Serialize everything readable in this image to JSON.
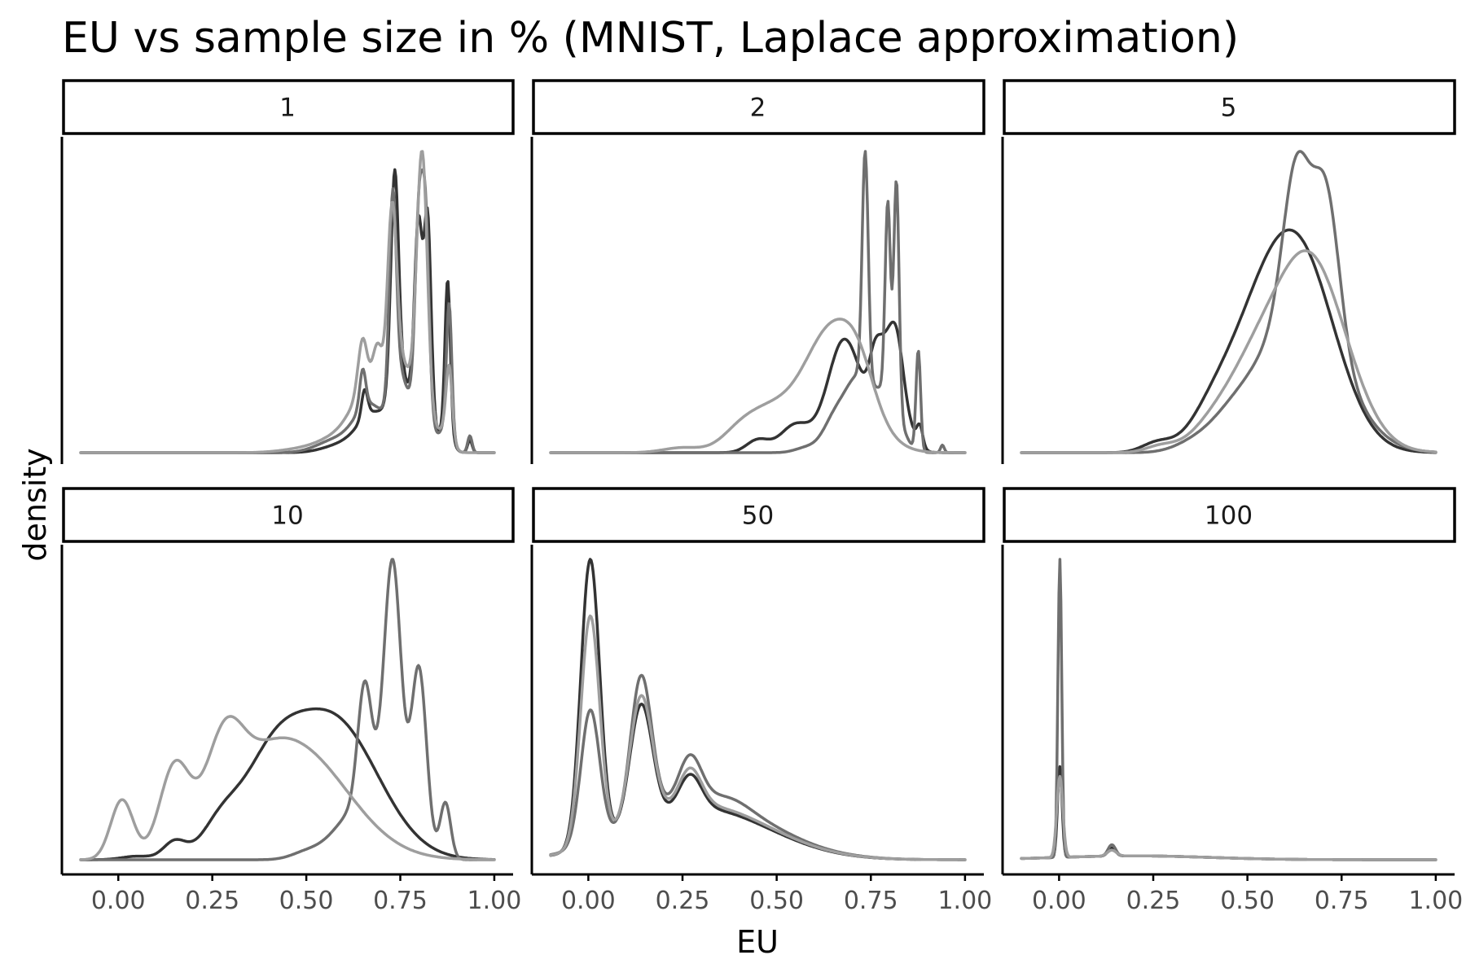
{
  "chart_data": {
    "type": "line",
    "title": "EU vs sample size in %  (MNIST, Laplace approximation)",
    "xlabel": "EU",
    "ylabel": "density",
    "xlim": [
      -0.15,
      1.05
    ],
    "x_ticks": [
      0,
      0.25,
      0.5,
      0.75,
      1
    ],
    "x_tick_labels": [
      "0.00",
      "0.25",
      "0.50",
      "0.75",
      "1.00"
    ],
    "y_ticks_shown": false,
    "grid": false,
    "legend": "none",
    "series_colors": [
      "#333333",
      "#6f6f6f",
      "#9e9e9e"
    ],
    "facets": [
      {
        "label": "1",
        "series": [
          {
            "components": [
              [
                0.735,
                0.01,
                0.95
              ],
              [
                0.745,
                0.022,
                0.35
              ],
              [
                0.798,
                0.01,
                0.75
              ],
              [
                0.823,
                0.009,
                0.85
              ],
              [
                0.805,
                0.024,
                0.35
              ],
              [
                0.876,
                0.007,
                0.7
              ],
              [
                0.872,
                0.015,
                0.12
              ],
              [
                0.935,
                0.006,
                0.06
              ],
              [
                0.655,
                0.008,
                0.13
              ],
              [
                0.68,
                0.04,
                0.18
              ],
              [
                0.6,
                0.05,
                0.04
              ]
            ]
          },
          {
            "components": [
              [
                0.73,
                0.009,
                0.9
              ],
              [
                0.745,
                0.022,
                0.35
              ],
              [
                0.8,
                0.01,
                0.85
              ],
              [
                0.818,
                0.009,
                0.78
              ],
              [
                0.805,
                0.024,
                0.3
              ],
              [
                0.88,
                0.007,
                0.6
              ],
              [
                0.872,
                0.015,
                0.12
              ],
              [
                0.935,
                0.006,
                0.08
              ],
              [
                0.65,
                0.008,
                0.18
              ],
              [
                0.67,
                0.04,
                0.22
              ],
              [
                0.58,
                0.05,
                0.06
              ]
            ]
          },
          {
            "components": [
              [
                0.728,
                0.012,
                0.8
              ],
              [
                0.745,
                0.025,
                0.4
              ],
              [
                0.803,
                0.012,
                0.72
              ],
              [
                0.815,
                0.011,
                0.5
              ],
              [
                0.805,
                0.026,
                0.35
              ],
              [
                0.88,
                0.008,
                0.32
              ],
              [
                0.872,
                0.016,
                0.1
              ],
              [
                0.65,
                0.012,
                0.26
              ],
              [
                0.69,
                0.014,
                0.28
              ],
              [
                0.66,
                0.04,
                0.25
              ],
              [
                0.59,
                0.05,
                0.07
              ],
              [
                0.5,
                0.06,
                0.02
              ]
            ]
          }
        ]
      },
      {
        "label": "2",
        "series": [
          {
            "components": [
              [
                0.45,
                0.03,
                0.05
              ],
              [
                0.55,
                0.04,
                0.11
              ],
              [
                0.68,
                0.045,
                0.45
              ],
              [
                0.8,
                0.035,
                0.45
              ],
              [
                0.88,
                0.008,
                0.08
              ],
              [
                0.76,
                0.015,
                0.12
              ],
              [
                0.82,
                0.015,
                0.1
              ]
            ]
          },
          {
            "components": [
              [
                0.735,
                0.008,
                0.9
              ],
              [
                0.795,
                0.007,
                0.75
              ],
              [
                0.818,
                0.007,
                0.9
              ],
              [
                0.876,
                0.006,
                0.4
              ],
              [
                0.72,
                0.04,
                0.3
              ],
              [
                0.8,
                0.03,
                0.2
              ],
              [
                0.65,
                0.03,
                0.1
              ],
              [
                0.58,
                0.03,
                0.02
              ],
              [
                0.94,
                0.005,
                0.03
              ]
            ]
          },
          {
            "components": [
              [
                0.65,
                0.08,
                0.5
              ],
              [
                0.48,
                0.06,
                0.13
              ],
              [
                0.4,
                0.05,
                0.07
              ],
              [
                0.25,
                0.05,
                0.02
              ],
              [
                0.72,
                0.04,
                0.1
              ]
            ]
          }
        ]
      },
      {
        "label": "5",
        "series": [
          {
            "components": [
              [
                0.63,
                0.1,
                0.64
              ],
              [
                0.5,
                0.08,
                0.18
              ],
              [
                0.4,
                0.06,
                0.08
              ],
              [
                0.26,
                0.04,
                0.03
              ]
            ]
          },
          {
            "components": [
              [
                0.63,
                0.035,
                0.45
              ],
              [
                0.71,
                0.035,
                0.45
              ],
              [
                0.64,
                0.11,
                0.45
              ],
              [
                0.45,
                0.06,
                0.06
              ],
              [
                0.35,
                0.05,
                0.02
              ]
            ]
          },
          {
            "components": [
              [
                0.66,
                0.1,
                0.62
              ],
              [
                0.5,
                0.07,
                0.15
              ],
              [
                0.4,
                0.06,
                0.06
              ],
              [
                0.27,
                0.04,
                0.02
              ]
            ]
          }
        ]
      },
      {
        "label": "10",
        "series": [
          {
            "components": [
              [
                0.57,
                0.12,
                0.4
              ],
              [
                0.4,
                0.08,
                0.2
              ],
              [
                0.27,
                0.05,
                0.08
              ],
              [
                0.15,
                0.03,
                0.05
              ],
              [
                0.05,
                0.04,
                0.01
              ]
            ]
          },
          {
            "components": [
              [
                0.73,
                0.022,
                0.68
              ],
              [
                0.8,
                0.02,
                0.5
              ],
              [
                0.655,
                0.018,
                0.32
              ],
              [
                0.7,
                0.06,
                0.2
              ],
              [
                0.87,
                0.014,
                0.16
              ],
              [
                0.6,
                0.05,
                0.07
              ],
              [
                0.5,
                0.04,
                0.02
              ]
            ]
          },
          {
            "components": [
              [
                0.01,
                0.03,
                0.17
              ],
              [
                0.15,
                0.04,
                0.25
              ],
              [
                0.28,
                0.05,
                0.25
              ],
              [
                0.47,
                0.14,
                0.32
              ],
              [
                0.38,
                0.07,
                0.05
              ]
            ]
          }
        ]
      },
      {
        "label": "50",
        "series": [
          {
            "components": [
              [
                0.005,
                0.025,
                0.9
              ],
              [
                0.14,
                0.03,
                0.38
              ],
              [
                0.27,
                0.03,
                0.11
              ],
              [
                0.3,
                0.18,
                0.16
              ]
            ]
          },
          {
            "components": [
              [
                0.005,
                0.025,
                0.42
              ],
              [
                0.14,
                0.028,
                0.45
              ],
              [
                0.27,
                0.03,
                0.14
              ],
              [
                0.3,
                0.18,
                0.19
              ],
              [
                0.38,
                0.05,
                0.02
              ]
            ]
          },
          {
            "components": [
              [
                0.005,
                0.025,
                0.72
              ],
              [
                0.14,
                0.03,
                0.4
              ],
              [
                0.27,
                0.03,
                0.12
              ],
              [
                0.3,
                0.18,
                0.17
              ]
            ]
          }
        ]
      },
      {
        "label": "100",
        "series": [
          {
            "components": [
              [
                0.002,
                0.006,
                0.28
              ],
              [
                0.14,
                0.01,
                0.025
              ],
              [
                0.2,
                0.2,
                0.012
              ]
            ]
          },
          {
            "components": [
              [
                0.002,
                0.005,
                0.92
              ],
              [
                0.14,
                0.01,
                0.035
              ],
              [
                0.2,
                0.2,
                0.012
              ]
            ]
          },
          {
            "components": [
              [
                0.002,
                0.008,
                0.25
              ],
              [
                0.14,
                0.012,
                0.018
              ],
              [
                0.2,
                0.2,
                0.012
              ]
            ]
          }
        ]
      }
    ]
  }
}
